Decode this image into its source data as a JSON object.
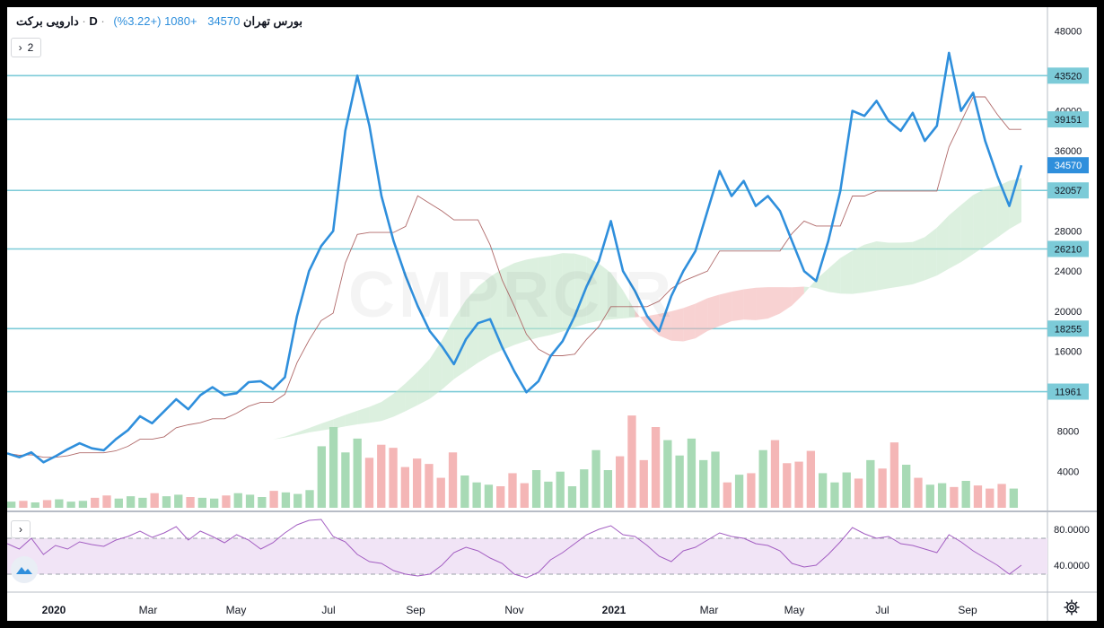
{
  "header": {
    "symbol": "دارویی برکت",
    "interval": "D",
    "exchange": "بورس تهران",
    "last_price": "34570",
    "change": "+1080 (+3.22%)",
    "collapse_count": "2"
  },
  "colors": {
    "price_line": "#2f8fdc",
    "level_line": "#7ccbd8",
    "kijun": "#b06a6a",
    "cloud_bull": "#c5e6c9",
    "cloud_bear": "#f3b4b4",
    "vol_up": "#a8dab5",
    "vol_down": "#f4b6b6",
    "rsi_line": "#a35ec2",
    "rsi_band": "#f1e4f6"
  },
  "chart_data": [
    {
      "type": "line",
      "panel": "price",
      "y_ticks": [
        "48000",
        "40000",
        "36000",
        "28000",
        "24000",
        "20000",
        "16000",
        "8000",
        "4000"
      ],
      "ylim": [
        0,
        50000
      ],
      "x_ticks": [
        "2020",
        "Mar",
        "May",
        "Jul",
        "Sep",
        "Nov",
        "2021",
        "Mar",
        "May",
        "Jul",
        "Sep"
      ],
      "levels": [
        {
          "value": 43520,
          "label": "43520"
        },
        {
          "value": 39151,
          "label": "39151"
        },
        {
          "value": 32057,
          "label": "32057"
        },
        {
          "value": 26210,
          "label": "26210"
        },
        {
          "value": 18255,
          "label": "18255"
        },
        {
          "value": 11961,
          "label": "11961"
        }
      ],
      "last_value": {
        "value": 34570,
        "label": "34570"
      },
      "series": [
        {
          "values": [
            5800,
            5400,
            5900,
            4900,
            5500,
            6200,
            6800,
            6300,
            6100,
            7200,
            8100,
            9500,
            8800,
            10000,
            11200,
            10200,
            11600,
            12400,
            11600,
            11800,
            12900,
            13000,
            12200,
            13400,
            19500,
            24000,
            26500,
            28000,
            38000,
            43520,
            38500,
            31500,
            27000,
            23500,
            20500,
            18000,
            16500,
            14700,
            17200,
            18800,
            19200,
            16400,
            14000,
            11900,
            13000,
            15500,
            17000,
            19500,
            22500,
            25000,
            29000,
            24000,
            22000,
            19500,
            18000,
            21500,
            24000,
            26000,
            30000,
            34000,
            31500,
            33000,
            30500,
            31500,
            30000,
            27000,
            24000,
            23000,
            27000,
            32000,
            40000,
            39500,
            41000,
            39000,
            38000,
            39800,
            37000,
            38500,
            45800,
            40000,
            41800,
            37000,
            33500,
            30500,
            34570
          ]
        }
      ]
    },
    {
      "type": "bar",
      "panel": "volume",
      "series": [
        {
          "values": [
            800,
            900,
            700,
            1000,
            1100,
            800,
            900,
            1300,
            1600,
            1200,
            1500,
            1300,
            1900,
            1500,
            1700,
            1400,
            1300,
            1200,
            1600,
            1900,
            1700,
            1400,
            2200,
            2000,
            1800,
            2300,
            8000,
            10500,
            7200,
            9000,
            6500,
            8200,
            7800,
            5300,
            6400,
            5700,
            3900,
            7200,
            4200,
            3300,
            3000,
            2800,
            4500,
            3200,
            4900,
            3400,
            4700,
            2800,
            5000,
            7500,
            4900,
            6700,
            12000,
            6200,
            10500,
            8800,
            6800,
            9000,
            6200,
            7300,
            3300,
            4300,
            4500,
            7500,
            8800,
            5800,
            6000,
            7400,
            4500,
            3300,
            4600,
            3800,
            6200,
            5100,
            8500,
            5600,
            3900,
            3000,
            3200,
            2700,
            3500,
            2900,
            2500,
            3100,
            2500
          ]
        }
      ]
    },
    {
      "type": "line",
      "panel": "rsi",
      "y_ticks": [
        "80.0000",
        "40.0000"
      ],
      "ylim": [
        10,
        100
      ],
      "bands": [
        30,
        70
      ],
      "series": [
        {
          "values": [
            64,
            58,
            70,
            52,
            62,
            58,
            66,
            63,
            61,
            68,
            72,
            78,
            71,
            76,
            83,
            68,
            78,
            72,
            65,
            74,
            68,
            58,
            65,
            76,
            85,
            90,
            91,
            72,
            66,
            52,
            44,
            42,
            34,
            30,
            28,
            30,
            40,
            54,
            60,
            56,
            48,
            42,
            30,
            26,
            32,
            46,
            54,
            64,
            74,
            80,
            84,
            74,
            72,
            62,
            50,
            44,
            56,
            60,
            68,
            76,
            72,
            70,
            64,
            62,
            56,
            42,
            38,
            40,
            52,
            66,
            82,
            75,
            70,
            72,
            64,
            62,
            58,
            54,
            74,
            66,
            56,
            48,
            40,
            30,
            40
          ]
        }
      ]
    }
  ]
}
